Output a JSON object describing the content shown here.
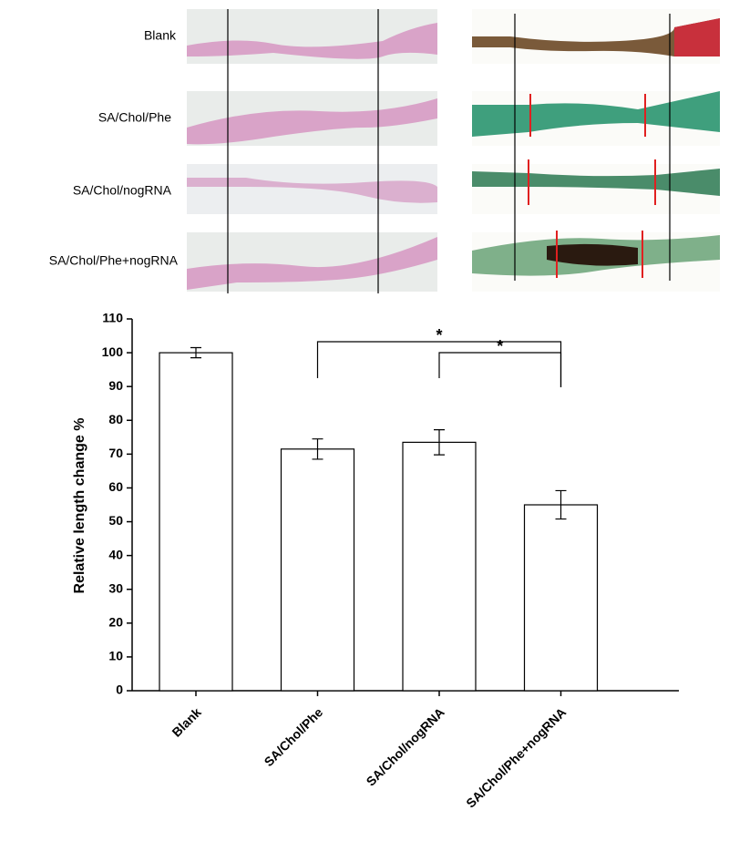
{
  "image_rows": [
    "Blank",
    "SA/Chol/Phe",
    "SA/Chol/nogRNA",
    "SA/Chol/Phe+nogRNA"
  ],
  "chart_data": {
    "type": "bar",
    "y_label": "Relative length change %",
    "categories": [
      "Blank",
      "SA/Chol/Phe",
      "SA/Chol/nogRNA",
      "SA/Chol/Phe+nogRNA"
    ],
    "values": [
      100,
      71.5,
      73.5,
      55
    ],
    "errors": [
      1.5,
      3,
      3.7,
      4.2
    ],
    "color": "#ffffff",
    "ylim": [
      0,
      110
    ],
    "yticks": [
      0,
      10,
      20,
      30,
      40,
      50,
      60,
      70,
      80,
      90,
      100,
      110
    ],
    "annotations": [
      "*",
      "*"
    ]
  }
}
